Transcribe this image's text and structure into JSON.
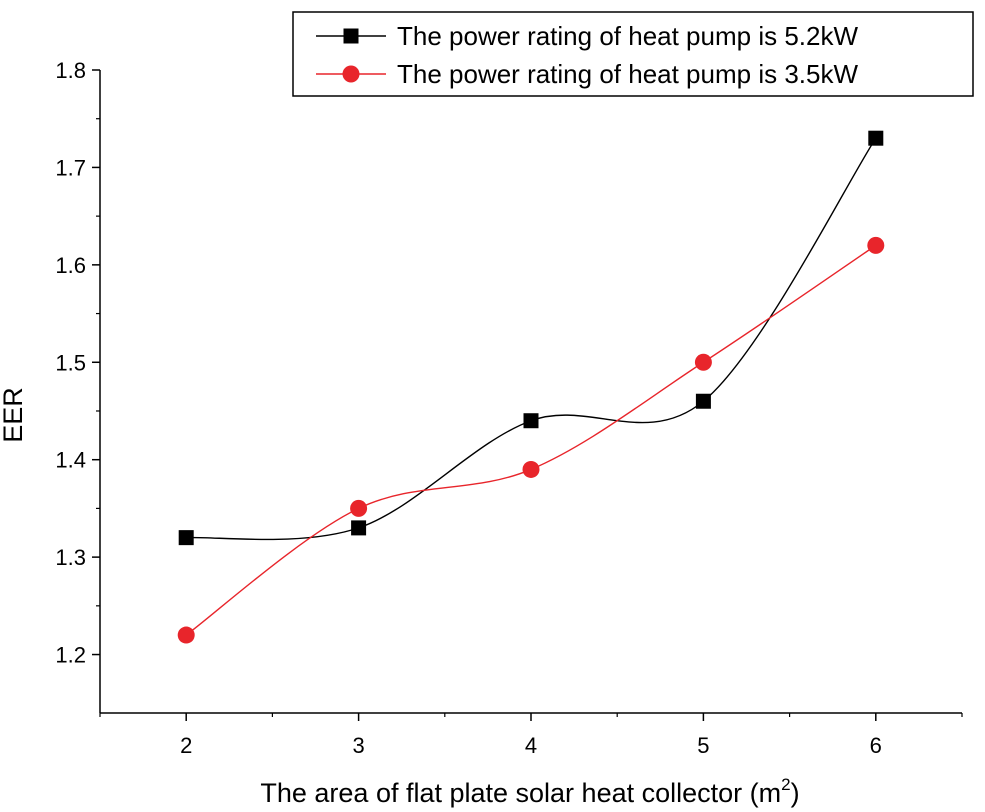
{
  "chart_data": {
    "type": "line",
    "title": "",
    "xlabel": "The area of flat plate solar heat collector (m",
    "xlabel_superscript": "2",
    "xlabel_suffix": ")",
    "ylabel": "EER",
    "x": [
      2,
      3,
      4,
      5,
      6
    ],
    "xlim": [
      1.5,
      6.5
    ],
    "ylim": [
      1.14,
      1.8
    ],
    "xticks": [
      "2",
      "3",
      "4",
      "5",
      "6"
    ],
    "yticks": [
      "1.2",
      "1.3",
      "1.4",
      "1.5",
      "1.6",
      "1.7",
      "1.8"
    ],
    "ytick_values": [
      1.2,
      1.3,
      1.4,
      1.5,
      1.6,
      1.7,
      1.8
    ],
    "legend_position": "top-right",
    "series": [
      {
        "name": "The power rating of heat pump is 5.2kW",
        "marker": "square",
        "color": "#000000",
        "values": [
          1.32,
          1.33,
          1.44,
          1.46,
          1.73
        ]
      },
      {
        "name": "The power rating of heat pump is 3.5kW",
        "marker": "circle",
        "color": "#e8252b",
        "values": [
          1.22,
          1.35,
          1.39,
          1.5,
          1.62
        ]
      }
    ]
  }
}
